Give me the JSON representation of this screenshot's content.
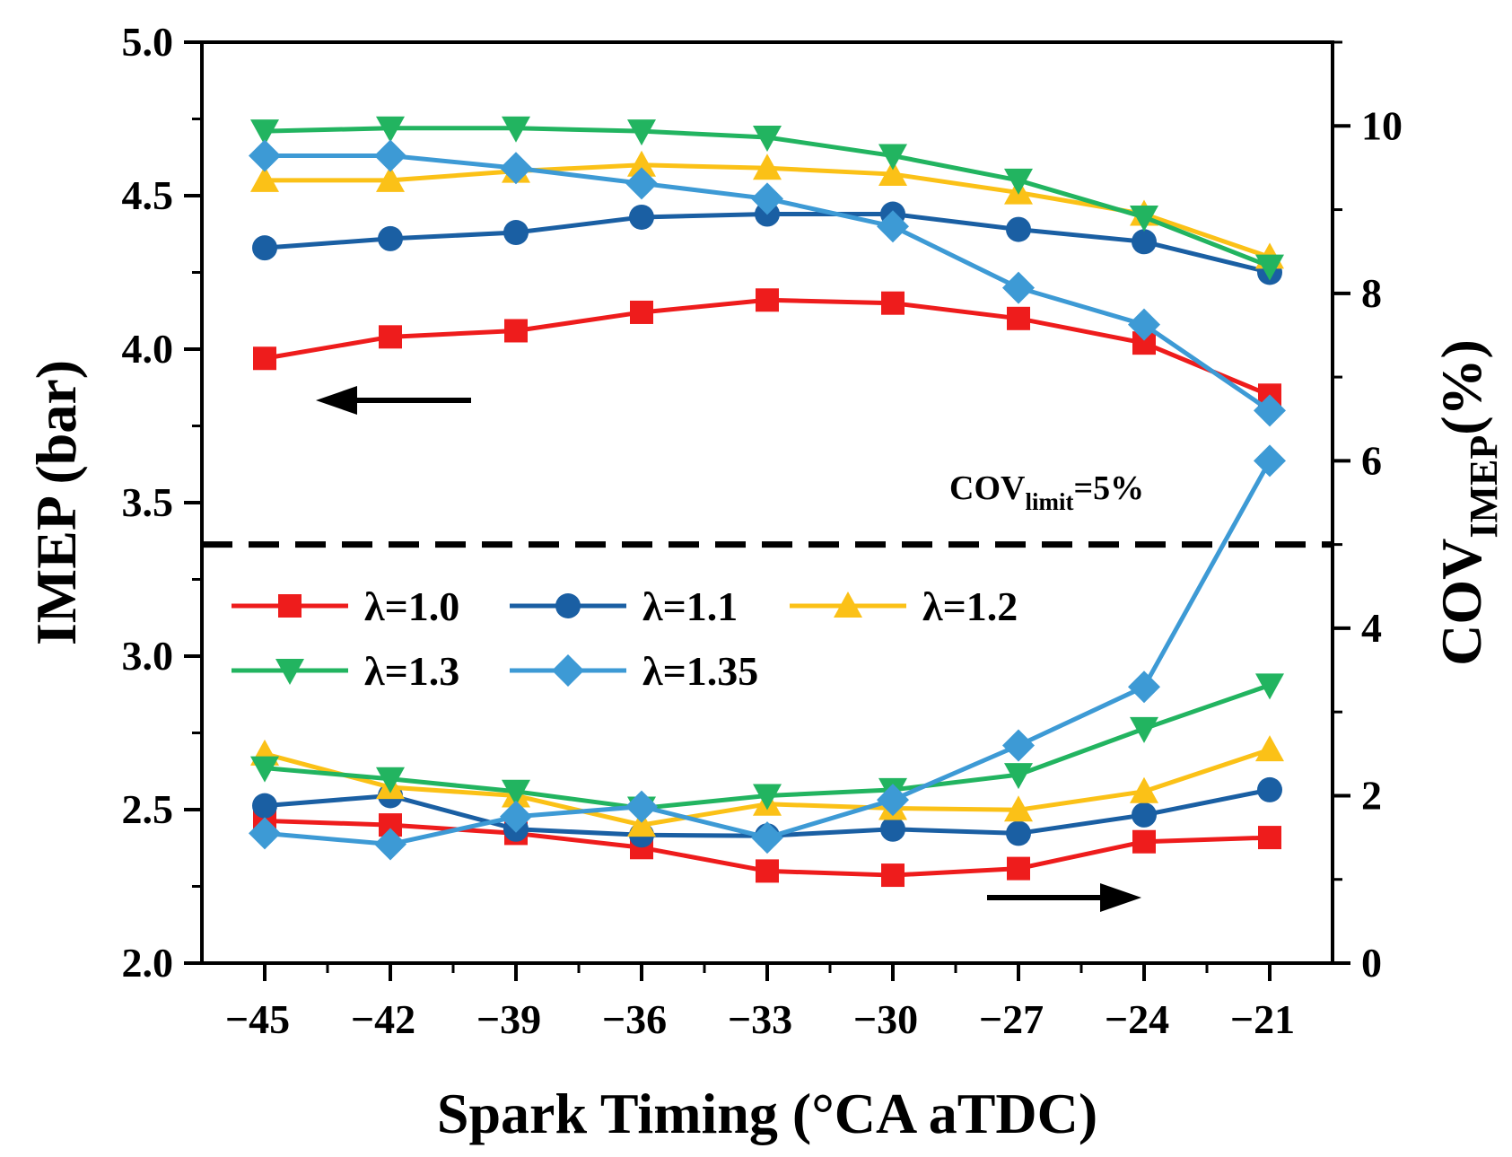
{
  "chart_data": {
    "type": "line",
    "x": [
      -45,
      -42,
      -39,
      -36,
      -33,
      -30,
      -27,
      -24,
      -21
    ],
    "xlabel": "Spark Timing (°CA aTDC)",
    "x_tick_labels": [
      "−45",
      "−42",
      "−39",
      "−36",
      "−33",
      "−30",
      "−27",
      "−24",
      "−21"
    ],
    "xlim": [
      -46.5,
      -19.5
    ],
    "ylabel": "IMEP (bar)",
    "ylim": [
      2.0,
      5.0
    ],
    "y_tick_labels": [
      "2.0",
      "2.5",
      "3.0",
      "3.5",
      "4.0",
      "4.5",
      "5.0"
    ],
    "y2label": {
      "main": "COV",
      "sub": "IMEP",
      "tail": "(%)"
    },
    "y2lim": [
      0,
      11
    ],
    "y2_tick_labels": [
      "0",
      "2",
      "4",
      "6",
      "8",
      "10"
    ],
    "threshold": {
      "axis": "y2",
      "value": 5,
      "label": {
        "main": "COV",
        "sub": "limit",
        "tail": "=5%"
      }
    },
    "arrows": {
      "imep_axis": "left",
      "cov_axis": "right"
    },
    "series": [
      {
        "name": "λ=1.0",
        "color": "#ee1c1c",
        "marker": "square",
        "imep": [
          3.97,
          4.04,
          4.06,
          4.12,
          4.16,
          4.15,
          4.1,
          4.02,
          3.85
        ],
        "cov": [
          1.7,
          1.65,
          1.55,
          1.38,
          1.1,
          1.05,
          1.13,
          1.45,
          1.5
        ]
      },
      {
        "name": "λ=1.1",
        "color": "#1a5fa3",
        "marker": "circle",
        "imep": [
          4.33,
          4.36,
          4.38,
          4.43,
          4.44,
          4.44,
          4.39,
          4.35,
          4.25
        ],
        "cov": [
          1.88,
          2.0,
          1.6,
          1.53,
          1.52,
          1.6,
          1.55,
          1.77,
          2.07
        ]
      },
      {
        "name": "λ=1.2",
        "color": "#fbc117",
        "marker": "triangle-up",
        "imep": [
          4.55,
          4.55,
          4.58,
          4.6,
          4.59,
          4.57,
          4.51,
          4.44,
          4.3
        ],
        "cov": [
          2.5,
          2.1,
          2.0,
          1.65,
          1.9,
          1.85,
          1.83,
          2.05,
          2.55
        ]
      },
      {
        "name": "λ=1.3",
        "color": "#22b460",
        "marker": "triangle-down",
        "imep": [
          4.71,
          4.72,
          4.72,
          4.71,
          4.69,
          4.63,
          4.55,
          4.43,
          4.27
        ],
        "cov": [
          2.33,
          2.2,
          2.05,
          1.85,
          2.0,
          2.07,
          2.25,
          2.8,
          3.32
        ]
      },
      {
        "name": "λ=1.35",
        "color": "#3d9ad5",
        "marker": "diamond",
        "imep": [
          4.63,
          4.63,
          4.59,
          4.54,
          4.49,
          4.4,
          4.2,
          4.08,
          3.8
        ],
        "cov": [
          1.55,
          1.42,
          1.75,
          1.87,
          1.5,
          1.95,
          2.6,
          3.3,
          6.0
        ]
      }
    ]
  }
}
